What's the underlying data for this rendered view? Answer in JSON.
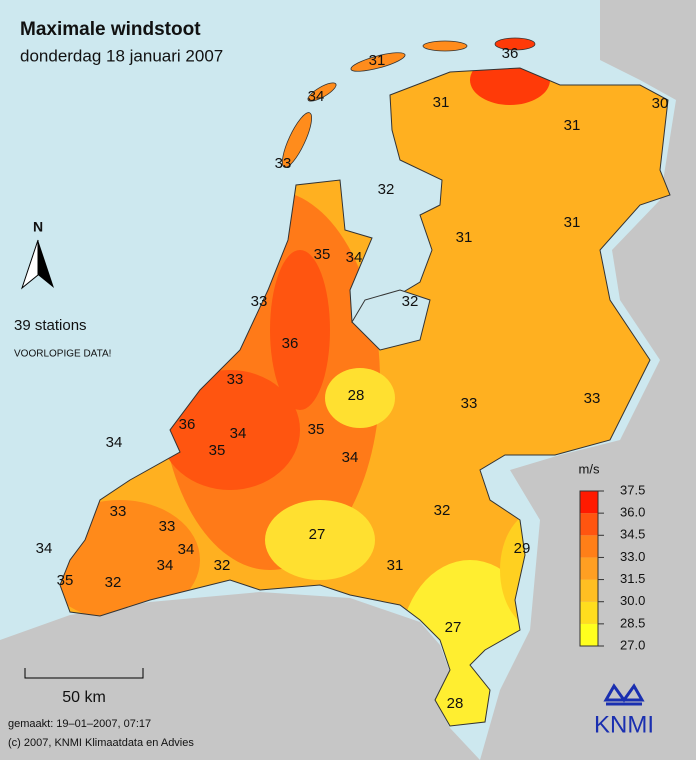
{
  "header": {
    "title": "Maximale windstoot",
    "subtitle": "donderdag 18 januari 2007"
  },
  "info": {
    "stations": "39 stations",
    "status": "VOORLOPIGE DATA!",
    "north": "N",
    "scale": "50 km"
  },
  "footer": {
    "made": "gemaakt: 19–01–2007, 07:17",
    "copyright": "(c) 2007, KNMI Klimaatdata en Advies",
    "logo": "KNMI"
  },
  "stations": {
    "values": [
      31,
      36,
      34,
      31,
      30,
      31,
      33,
      32,
      31,
      31,
      35,
      34,
      33,
      32,
      36,
      33,
      28,
      33,
      33,
      36,
      34,
      35,
      35,
      34,
      34,
      32,
      33,
      33,
      27,
      34,
      34,
      29,
      34,
      32,
      31,
      35,
      32,
      27,
      28
    ]
  },
  "legend": {
    "unit": "m/s",
    "ticks": [
      {
        "value": 27,
        "label": "27.0"
      },
      28.5,
      {
        "value": 30,
        "label": "30.0"
      },
      31.5,
      {
        "value": 33,
        "label": "33.0"
      },
      34.5,
      {
        "value": 36,
        "label": "36.0"
      },
      37.5
    ],
    "colors": [
      "#ffff1e",
      "#ffdd1e",
      "#ffbf22",
      "#ff9f22",
      "#ff7f18",
      "#ff5510",
      "#ff1a00"
    ]
  }
}
